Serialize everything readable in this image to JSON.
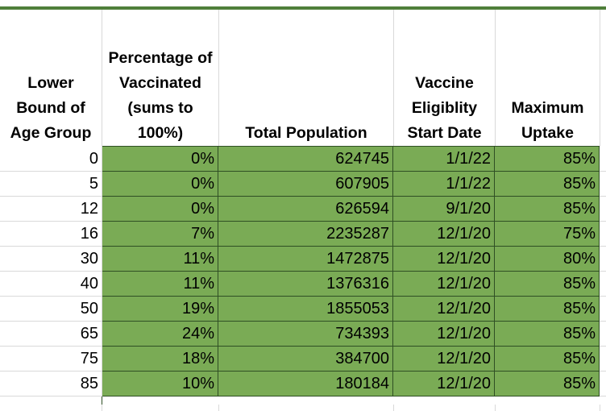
{
  "headers": [
    "Lower\nBound of\nAge Group",
    "Percentage of\nVaccinated\n(sums to\n100%)",
    "Total Population",
    "Vaccine\nEligiblity\nStart Date",
    "Maximum\nUptake"
  ],
  "rows": [
    {
      "lower_bound": "0",
      "pct_vaccinated": "0%",
      "total_population": "624745",
      "start_date": "1/1/22",
      "max_uptake": "85%"
    },
    {
      "lower_bound": "5",
      "pct_vaccinated": "0%",
      "total_population": "607905",
      "start_date": "1/1/22",
      "max_uptake": "85%"
    },
    {
      "lower_bound": "12",
      "pct_vaccinated": "0%",
      "total_population": "626594",
      "start_date": "9/1/20",
      "max_uptake": "85%"
    },
    {
      "lower_bound": "16",
      "pct_vaccinated": "7%",
      "total_population": "2235287",
      "start_date": "12/1/20",
      "max_uptake": "75%"
    },
    {
      "lower_bound": "30",
      "pct_vaccinated": "11%",
      "total_population": "1472875",
      "start_date": "12/1/20",
      "max_uptake": "80%"
    },
    {
      "lower_bound": "40",
      "pct_vaccinated": "11%",
      "total_population": "1376316",
      "start_date": "12/1/20",
      "max_uptake": "85%"
    },
    {
      "lower_bound": "50",
      "pct_vaccinated": "19%",
      "total_population": "1855053",
      "start_date": "12/1/20",
      "max_uptake": "85%"
    },
    {
      "lower_bound": "65",
      "pct_vaccinated": "24%",
      "total_population": "734393",
      "start_date": "12/1/20",
      "max_uptake": "85%"
    },
    {
      "lower_bound": "75",
      "pct_vaccinated": "18%",
      "total_population": "384700",
      "start_date": "12/1/20",
      "max_uptake": "85%"
    },
    {
      "lower_bound": "85",
      "pct_vaccinated": "10%",
      "total_population": "180184",
      "start_date": "12/1/20",
      "max_uptake": "85%"
    }
  ],
  "colors": {
    "fill_green": "#7aab55",
    "top_border_green": "#4f7f3a",
    "cell_border_dark": "#2f4f24",
    "gridline_gray": "#d9d9d9"
  }
}
